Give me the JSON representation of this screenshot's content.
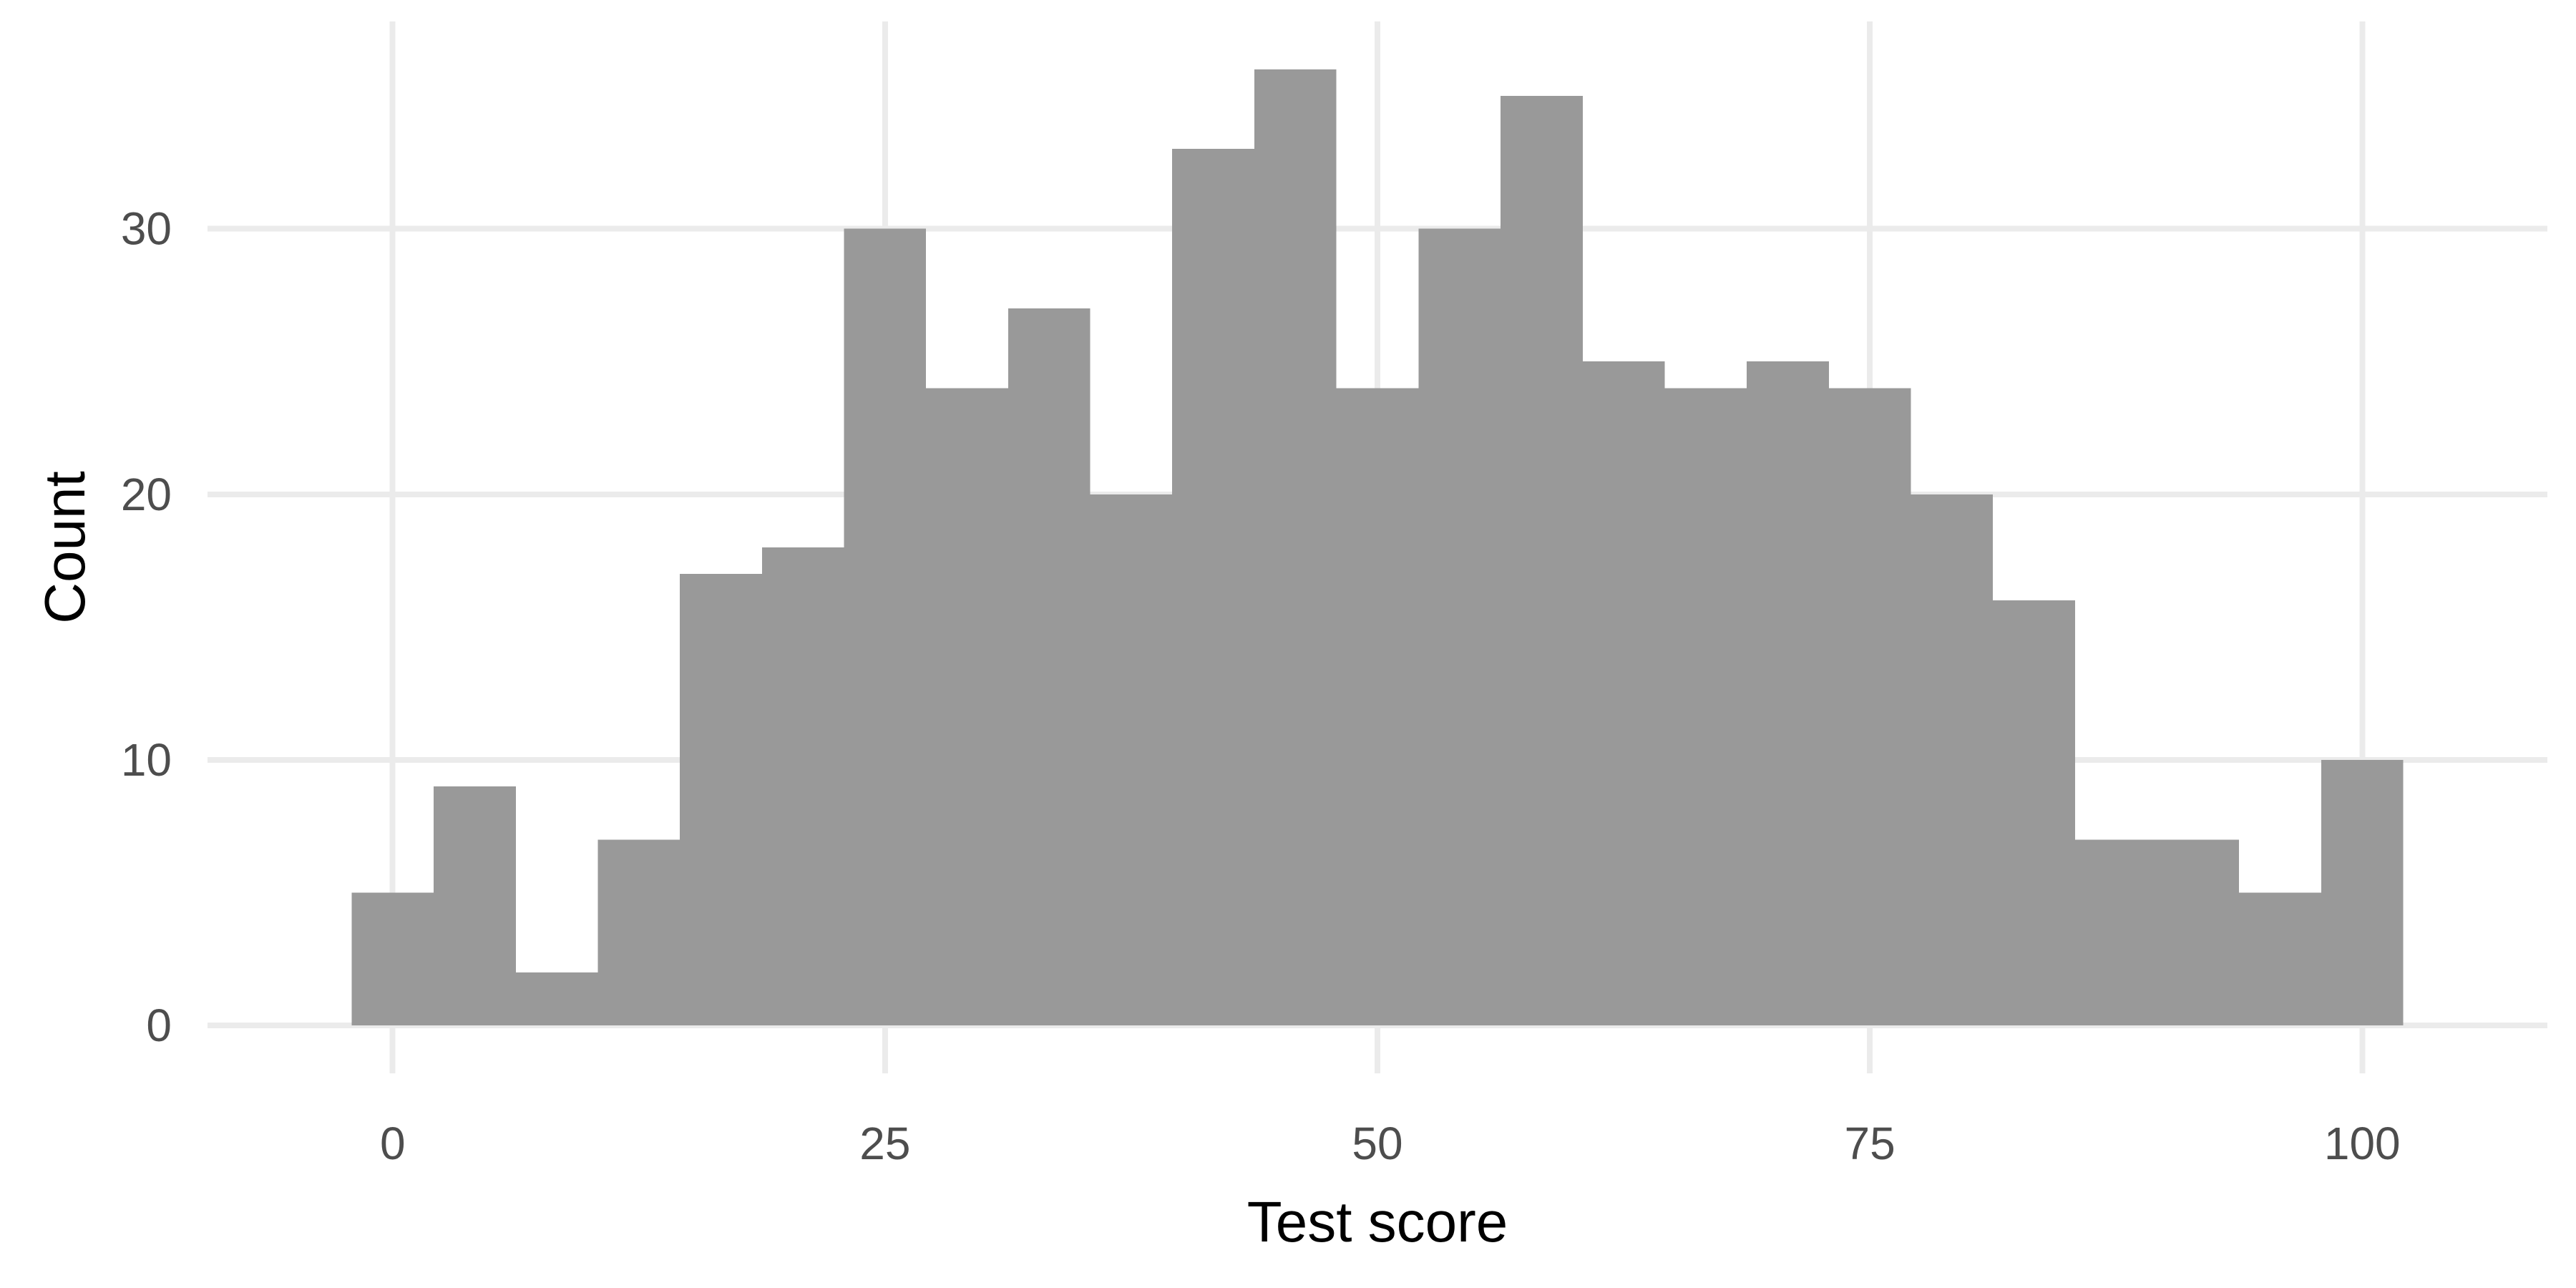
{
  "chart_data": {
    "type": "bar",
    "subtype": "histogram",
    "bin_width": 4.1667,
    "bins": [
      {
        "x0": -2.08,
        "x1": 2.08,
        "count": 5
      },
      {
        "x0": 2.08,
        "x1": 6.25,
        "count": 9
      },
      {
        "x0": 6.25,
        "x1": 10.42,
        "count": 2
      },
      {
        "x0": 10.42,
        "x1": 14.58,
        "count": 7
      },
      {
        "x0": 14.58,
        "x1": 18.75,
        "count": 17
      },
      {
        "x0": 18.75,
        "x1": 22.92,
        "count": 18
      },
      {
        "x0": 22.92,
        "x1": 27.08,
        "count": 30
      },
      {
        "x0": 27.08,
        "x1": 31.25,
        "count": 24
      },
      {
        "x0": 31.25,
        "x1": 35.42,
        "count": 27
      },
      {
        "x0": 35.42,
        "x1": 39.58,
        "count": 20
      },
      {
        "x0": 39.58,
        "x1": 43.75,
        "count": 33
      },
      {
        "x0": 43.75,
        "x1": 47.92,
        "count": 36
      },
      {
        "x0": 47.92,
        "x1": 52.08,
        "count": 24
      },
      {
        "x0": 52.08,
        "x1": 56.25,
        "count": 30
      },
      {
        "x0": 56.25,
        "x1": 60.42,
        "count": 35
      },
      {
        "x0": 60.42,
        "x1": 64.58,
        "count": 25
      },
      {
        "x0": 64.58,
        "x1": 68.75,
        "count": 24
      },
      {
        "x0": 68.75,
        "x1": 72.92,
        "count": 25
      },
      {
        "x0": 72.92,
        "x1": 77.08,
        "count": 24
      },
      {
        "x0": 77.08,
        "x1": 81.25,
        "count": 20
      },
      {
        "x0": 81.25,
        "x1": 85.42,
        "count": 16
      },
      {
        "x0": 85.42,
        "x1": 89.58,
        "count": 7
      },
      {
        "x0": 89.58,
        "x1": 93.75,
        "count": 7
      },
      {
        "x0": 93.75,
        "x1": 97.92,
        "count": 5
      },
      {
        "x0": 97.92,
        "x1": 102.08,
        "count": 10
      }
    ],
    "xlabel": "Test score",
    "ylabel": "Count",
    "xlim": [
      -9.4,
      109.4
    ],
    "ylim": [
      -1.8,
      37.8
    ],
    "x_ticks": [
      0,
      25,
      50,
      75,
      100
    ],
    "y_ticks": [
      0,
      10,
      20,
      30
    ],
    "grid": true,
    "legend": "none",
    "colors": {
      "bar_fill": "#999999",
      "grid": "#ebebeb",
      "tick_text": "#4d4d4d",
      "axis_title": "#000000",
      "background": "#ffffff"
    }
  }
}
